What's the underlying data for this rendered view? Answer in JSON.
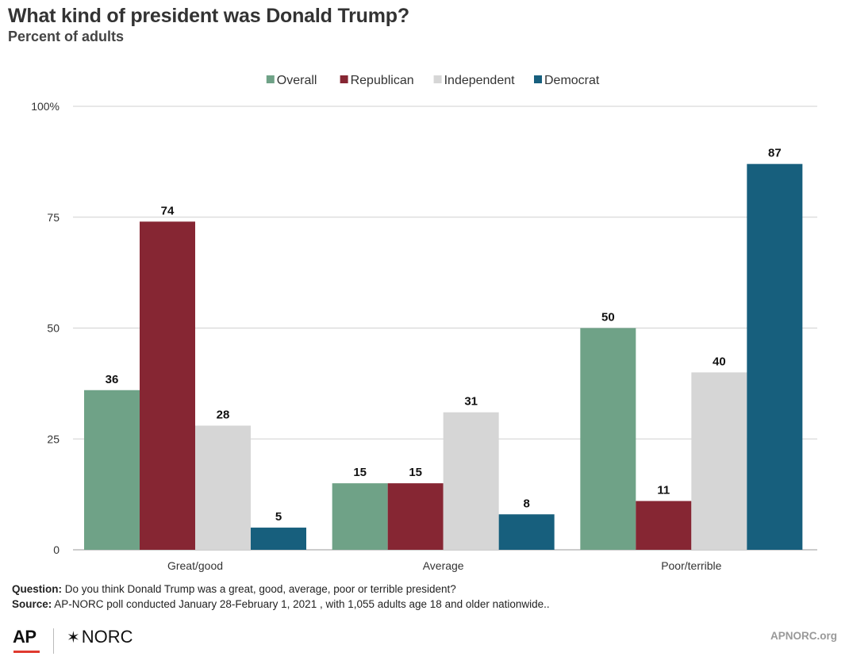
{
  "header": {
    "title": "What kind of president was Donald Trump?",
    "subtitle": "Percent of adults"
  },
  "chart_data": {
    "type": "bar",
    "categories": [
      "Great/good",
      "Average",
      "Poor/terrible"
    ],
    "series": [
      {
        "name": "Overall",
        "color": "#6fa287",
        "values": [
          36,
          15,
          50
        ]
      },
      {
        "name": "Republican",
        "color": "#862633",
        "values": [
          74,
          15,
          11
        ]
      },
      {
        "name": "Independent",
        "color": "#d6d6d6",
        "values": [
          28,
          31,
          40
        ]
      },
      {
        "name": "Democrat",
        "color": "#175f7d",
        "values": [
          5,
          8,
          87
        ]
      }
    ],
    "y_ticks": [
      0,
      25,
      50,
      75,
      100
    ],
    "y_tick_labels": [
      "0",
      "25",
      "50",
      "75",
      "100%"
    ],
    "ylim": [
      0,
      100
    ],
    "grid": true,
    "legend_position": "top-center",
    "data_labels": true
  },
  "notes": {
    "question_label": "Question:",
    "question_text": "Do you think Donald Trump was a great, good, average, poor or terrible president?",
    "source_label": "Source:",
    "source_text": "AP-NORC poll conducted January 28-February 1, 2021 , with 1,055 adults age 18 and older nationwide.."
  },
  "footer": {
    "ap_logo": "AP",
    "norc_logo": "NORC",
    "norc_mark": "✶",
    "url": "APNORC.org"
  }
}
